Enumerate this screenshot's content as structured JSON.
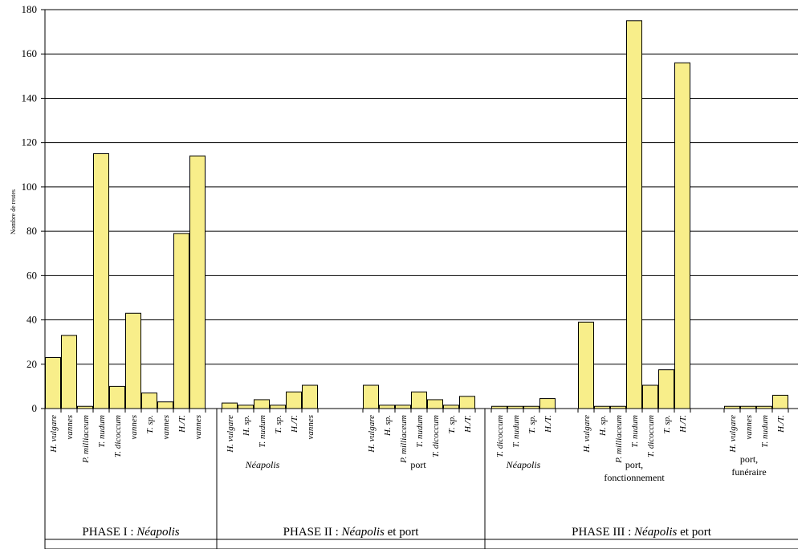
{
  "chart_data": {
    "type": "bar",
    "ylabel": "Nombre de restes",
    "ylim": [
      0,
      180
    ],
    "yticks": [
      0,
      20,
      40,
      60,
      80,
      100,
      120,
      140,
      160,
      180
    ],
    "grid": true,
    "bar_color": "#f8ee8a",
    "categories": [
      "H. vulgare",
      "vannes",
      "P. milliaceum",
      "T. nudum",
      "T. dicoccum",
      "vannes",
      "T. sp.",
      "vannes",
      "H./T.",
      "vannes",
      "H. vulgare",
      "H. sp.",
      "T. nudum",
      "T. sp.",
      "H./T.",
      "vannes",
      "H. vulgare",
      "H. sp.",
      "P. milliaceum",
      "T. nudum",
      "T. dicoccum",
      "T. sp.",
      "H./T.",
      "T. dicoccum",
      "T. nudum",
      "T. sp.",
      "H./T.",
      "H. vulgare",
      "H. sp.",
      "P. milliaceum",
      "T. nudum",
      "T. dicoccum",
      "T. sp.",
      "H./T.",
      "H. vulgare",
      "vannes",
      "T. nudum",
      "H./T."
    ],
    "values": [
      23,
      33,
      1,
      115,
      10,
      43,
      7,
      3,
      79,
      114,
      2.5,
      1.5,
      4,
      1.5,
      7.5,
      10.5,
      10.5,
      1.5,
      1.5,
      7.5,
      4,
      1.5,
      5.5,
      1,
      1,
      1,
      4.5,
      39,
      1,
      1,
      175,
      10.5,
      17.5,
      156,
      1,
      1,
      1,
      6
    ],
    "groups": [
      {
        "label": "",
        "italic": false
      },
      {
        "label": "Néapolis",
        "italic": true
      },
      {
        "label": "port",
        "italic": false
      },
      {
        "label": "Néapolis",
        "italic": true
      },
      {
        "label": "port,",
        "label2": "fonctionnement",
        "italic": false
      },
      {
        "label": "port,",
        "label2": "funéraire",
        "italic": false
      }
    ],
    "phases": [
      {
        "prefix": "PHASE I : ",
        "italic_part": "Néapolis",
        "suffix": ""
      },
      {
        "prefix": "PHASE II : ",
        "italic_part": "Néapolis",
        "suffix": " et port"
      },
      {
        "prefix": "PHASE III : ",
        "italic_part": "Néapolis",
        "suffix": " et port"
      }
    ]
  }
}
